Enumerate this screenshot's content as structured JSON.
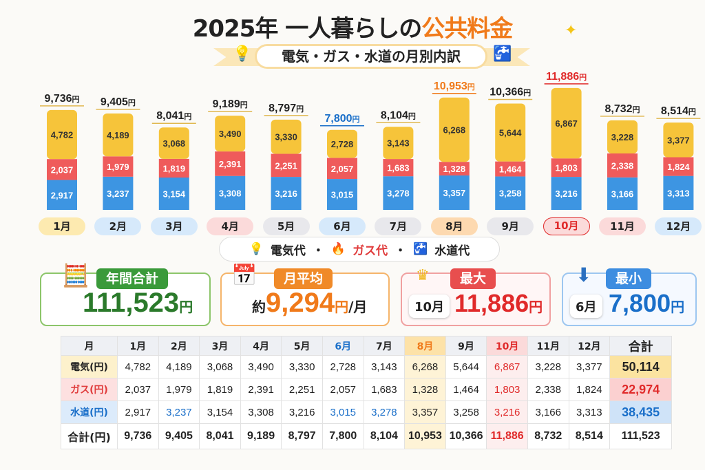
{
  "title": {
    "year": "2025年",
    "main": "一人暮らしの",
    "accent": "公共料金"
  },
  "subtitle": "電気・ガス・水道の月別内訳",
  "legend": {
    "electric": "電気代",
    "gas": "ガス代",
    "water": "水道代",
    "sep": "・"
  },
  "unit": "円",
  "colors": {
    "electric": "#f6c43a",
    "gas": "#ef5b5b",
    "water": "#3d95e2",
    "max": "#e02a2a",
    "min": "#1a6fc9",
    "peak": "#f07a1a"
  },
  "cards": {
    "annual": {
      "label": "年間合計",
      "value": "111,523",
      "unit": "円",
      "color": "#3a9a3a"
    },
    "average": {
      "label": "月平均",
      "prefix": "約",
      "value": "9,294",
      "unit": "円",
      "suffix": "/月",
      "color": "#f08a28"
    },
    "max": {
      "label": "最大",
      "month": "10月",
      "value": "11,886",
      "unit": "円",
      "color": "#e84e4e"
    },
    "min": {
      "label": "最小",
      "month": "6月",
      "value": "7,800",
      "unit": "円",
      "color": "#3d8de0"
    }
  },
  "chart_data": {
    "type": "bar",
    "stacked": true,
    "categories": [
      "1月",
      "2月",
      "3月",
      "4月",
      "5月",
      "6月",
      "7月",
      "8月",
      "9月",
      "10月",
      "11月",
      "12月"
    ],
    "series": [
      {
        "name": "水道代",
        "values": [
          2917,
          3237,
          3154,
          3308,
          3216,
          3015,
          3278,
          3357,
          3258,
          3216,
          3166,
          3313
        ]
      },
      {
        "name": "ガス代",
        "values": [
          2037,
          1979,
          1819,
          2391,
          2251,
          2057,
          1683,
          1328,
          1464,
          1803,
          2338,
          1824
        ]
      },
      {
        "name": "電気代",
        "values": [
          4782,
          4189,
          3068,
          3490,
          3330,
          2728,
          3143,
          6268,
          5644,
          6867,
          3228,
          3377
        ]
      }
    ],
    "totals": [
      "9,736",
      "9,405",
      "8,041",
      "9,189",
      "8,797",
      "7,800",
      "8,104",
      "10,953",
      "10,366",
      "11,886",
      "8,732",
      "8,514"
    ],
    "highlight": {
      "min": "6月",
      "peak": "8月",
      "max": "10月"
    },
    "month_pill_colors": [
      "#fdeab0",
      "#d6e9fb",
      "#d6e9fb",
      "#fbdada",
      "#e8e8ec",
      "#d6e9fb",
      "#e8e8ec",
      "#fdd9b0",
      "#e8e8ec",
      "#fbdada",
      "#fbdada",
      "#d6e9fb"
    ]
  },
  "table": {
    "header": [
      "月",
      "1月",
      "2月",
      "3月",
      "4月",
      "5月",
      "6月",
      "7月",
      "8月",
      "9月",
      "10月",
      "11月",
      "12月",
      "合計"
    ],
    "rows": [
      {
        "label": "電気(円)",
        "values": [
          "4,782",
          "4,189",
          "3,068",
          "3,490",
          "3,330",
          "2,728",
          "3,143",
          "6,268",
          "5,644",
          "6,867",
          "3,228",
          "3,377"
        ],
        "total": "50,114"
      },
      {
        "label": "ガス(円)",
        "values": [
          "2,037",
          "1,979",
          "1,819",
          "2,391",
          "2,251",
          "2,057",
          "1,683",
          "1,328",
          "1,464",
          "1,803",
          "2,338",
          "1,824"
        ],
        "total": "22,974"
      },
      {
        "label": "水道(円)",
        "values": [
          "2,917",
          "3,237",
          "3,154",
          "3,308",
          "3,216",
          "3,015",
          "3,278",
          "3,357",
          "3,258",
          "3,216",
          "3,166",
          "3,313"
        ],
        "total": "38,435"
      },
      {
        "label": "合計(円)",
        "values": [
          "9,736",
          "9,405",
          "8,041",
          "9,189",
          "8,797",
          "7,800",
          "8,104",
          "10,953",
          "10,366",
          "11,886",
          "8,732",
          "8,514"
        ],
        "total": "111,523"
      }
    ]
  }
}
